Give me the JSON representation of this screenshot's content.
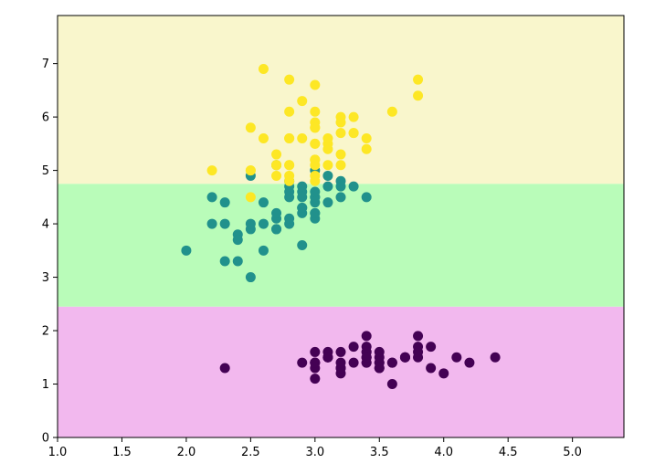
{
  "chart_data": {
    "type": "scatter",
    "title": "",
    "xlabel": "",
    "ylabel": "",
    "xlim": [
      1.0,
      5.4
    ],
    "ylim": [
      0,
      7.9
    ],
    "xticks": [
      "1.0",
      "1.5",
      "2.0",
      "2.5",
      "3.0",
      "3.5",
      "4.0",
      "4.5",
      "5.0"
    ],
    "yticks": [
      "0",
      "1",
      "2",
      "3",
      "4",
      "5",
      "6",
      "7"
    ],
    "grid": false,
    "legend": "none",
    "decision_regions": [
      {
        "y_from": 0,
        "y_to": 2.45,
        "color": "#f2b8ee"
      },
      {
        "y_from": 2.45,
        "y_to": 4.75,
        "color": "#b9fcb9"
      },
      {
        "y_from": 4.75,
        "y_to": 7.9,
        "color": "#f9f6cc"
      }
    ],
    "series": [
      {
        "color": "#440154",
        "points": [
          [
            3.5,
            1.4
          ],
          [
            3.0,
            1.4
          ],
          [
            3.2,
            1.3
          ],
          [
            3.1,
            1.5
          ],
          [
            3.6,
            1.4
          ],
          [
            3.9,
            1.7
          ],
          [
            3.4,
            1.4
          ],
          [
            3.4,
            1.5
          ],
          [
            2.9,
            1.4
          ],
          [
            3.1,
            1.5
          ],
          [
            3.7,
            1.5
          ],
          [
            3.4,
            1.6
          ],
          [
            3.0,
            1.4
          ],
          [
            3.0,
            1.1
          ],
          [
            4.0,
            1.2
          ],
          [
            4.4,
            1.5
          ],
          [
            3.9,
            1.3
          ],
          [
            3.5,
            1.4
          ],
          [
            3.8,
            1.7
          ],
          [
            3.8,
            1.5
          ],
          [
            3.4,
            1.7
          ],
          [
            3.7,
            1.5
          ],
          [
            3.6,
            1.0
          ],
          [
            3.3,
            1.7
          ],
          [
            3.4,
            1.9
          ],
          [
            3.0,
            1.6
          ],
          [
            3.4,
            1.6
          ],
          [
            3.5,
            1.5
          ],
          [
            3.4,
            1.4
          ],
          [
            3.2,
            1.6
          ],
          [
            3.1,
            1.6
          ],
          [
            3.4,
            1.5
          ],
          [
            4.1,
            1.5
          ],
          [
            4.2,
            1.4
          ],
          [
            3.1,
            1.5
          ],
          [
            3.2,
            1.2
          ],
          [
            3.5,
            1.3
          ],
          [
            3.6,
            1.4
          ],
          [
            3.0,
            1.3
          ],
          [
            3.4,
            1.5
          ],
          [
            3.5,
            1.3
          ],
          [
            2.3,
            1.3
          ],
          [
            3.2,
            1.3
          ],
          [
            3.5,
            1.6
          ],
          [
            3.8,
            1.9
          ],
          [
            3.0,
            1.4
          ],
          [
            3.8,
            1.6
          ],
          [
            3.2,
            1.4
          ],
          [
            3.7,
            1.5
          ],
          [
            3.3,
            1.4
          ]
        ]
      },
      {
        "color": "#21918c",
        "points": [
          [
            3.2,
            4.7
          ],
          [
            3.2,
            4.5
          ],
          [
            3.1,
            4.9
          ],
          [
            2.3,
            4.0
          ],
          [
            2.8,
            4.6
          ],
          [
            2.8,
            4.5
          ],
          [
            3.3,
            4.7
          ],
          [
            2.4,
            3.3
          ],
          [
            2.9,
            4.6
          ],
          [
            2.7,
            3.9
          ],
          [
            2.0,
            3.5
          ],
          [
            3.0,
            4.2
          ],
          [
            2.2,
            4.0
          ],
          [
            2.9,
            4.7
          ],
          [
            2.9,
            3.6
          ],
          [
            3.1,
            4.4
          ],
          [
            3.0,
            4.5
          ],
          [
            2.7,
            4.1
          ],
          [
            2.2,
            4.5
          ],
          [
            2.5,
            3.9
          ],
          [
            3.2,
            4.8
          ],
          [
            2.8,
            4.0
          ],
          [
            2.5,
            4.9
          ],
          [
            2.8,
            4.7
          ],
          [
            2.9,
            4.3
          ],
          [
            3.0,
            4.4
          ],
          [
            2.8,
            4.8
          ],
          [
            3.0,
            5.0
          ],
          [
            2.9,
            4.5
          ],
          [
            2.6,
            3.5
          ],
          [
            2.4,
            3.8
          ],
          [
            2.4,
            3.7
          ],
          [
            2.7,
            3.9
          ],
          [
            2.7,
            5.1
          ],
          [
            3.0,
            4.5
          ],
          [
            3.4,
            4.5
          ],
          [
            3.1,
            4.7
          ],
          [
            2.3,
            4.4
          ],
          [
            3.0,
            4.1
          ],
          [
            2.5,
            4.0
          ],
          [
            2.6,
            4.4
          ],
          [
            3.0,
            4.6
          ],
          [
            2.6,
            4.0
          ],
          [
            2.3,
            3.3
          ],
          [
            2.7,
            4.2
          ],
          [
            3.0,
            4.2
          ],
          [
            2.9,
            4.2
          ],
          [
            2.9,
            4.3
          ],
          [
            2.5,
            3.0
          ],
          [
            2.8,
            4.1
          ]
        ]
      },
      {
        "color": "#fde725",
        "points": [
          [
            3.3,
            6.0
          ],
          [
            2.7,
            5.1
          ],
          [
            3.0,
            5.9
          ],
          [
            2.9,
            5.6
          ],
          [
            3.0,
            5.8
          ],
          [
            3.0,
            6.6
          ],
          [
            2.5,
            4.5
          ],
          [
            2.9,
            6.3
          ],
          [
            2.5,
            5.8
          ],
          [
            3.6,
            6.1
          ],
          [
            3.2,
            5.1
          ],
          [
            2.7,
            5.3
          ],
          [
            3.0,
            5.5
          ],
          [
            2.5,
            5.0
          ],
          [
            2.8,
            5.1
          ],
          [
            3.2,
            5.3
          ],
          [
            3.0,
            5.5
          ],
          [
            3.8,
            6.7
          ],
          [
            2.6,
            6.9
          ],
          [
            2.2,
            5.0
          ],
          [
            3.2,
            5.7
          ],
          [
            2.8,
            4.9
          ],
          [
            2.8,
            6.7
          ],
          [
            2.7,
            4.9
          ],
          [
            3.3,
            5.7
          ],
          [
            3.2,
            6.0
          ],
          [
            2.8,
            4.8
          ],
          [
            3.0,
            4.9
          ],
          [
            2.8,
            5.6
          ],
          [
            3.0,
            5.8
          ],
          [
            2.8,
            6.1
          ],
          [
            3.8,
            6.4
          ],
          [
            2.8,
            5.6
          ],
          [
            2.8,
            5.1
          ],
          [
            2.6,
            5.6
          ],
          [
            3.0,
            6.1
          ],
          [
            3.4,
            5.6
          ],
          [
            3.1,
            5.5
          ],
          [
            3.0,
            4.8
          ],
          [
            3.1,
            5.4
          ],
          [
            3.1,
            5.6
          ],
          [
            3.1,
            5.1
          ],
          [
            2.7,
            5.1
          ],
          [
            3.2,
            5.9
          ],
          [
            3.3,
            5.7
          ],
          [
            3.0,
            5.2
          ],
          [
            2.5,
            5.0
          ],
          [
            3.0,
            5.2
          ],
          [
            3.4,
            5.4
          ],
          [
            3.0,
            5.1
          ]
        ]
      }
    ]
  }
}
